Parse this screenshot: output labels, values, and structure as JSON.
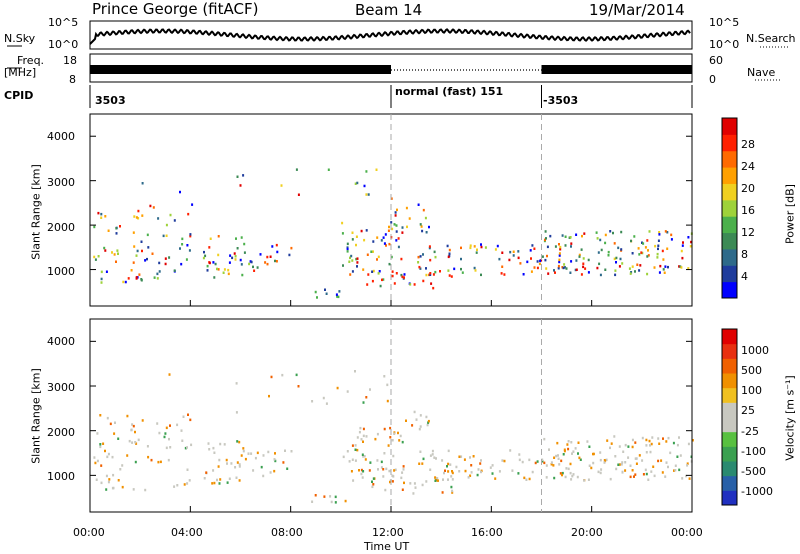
{
  "header": {
    "station": "Prince George (fitACF)",
    "beam": "Beam 14",
    "date": "19/Mar/2014"
  },
  "strip": {
    "nsky_label": "N.Sky",
    "nsearch_label": "N.Search",
    "noise_ticks_left": [
      "10^5",
      "10^0"
    ],
    "noise_ticks_right": [
      "10^5",
      "10^0"
    ],
    "freq_label": "Freq.",
    "freq_unit": "[MHz]",
    "freq_ticks": [
      "18",
      "8"
    ],
    "nave_label": "Nave",
    "nave_ticks": [
      "60",
      "0"
    ],
    "cpid_label": "CPID",
    "cpid_segments": [
      {
        "label": "3503",
        "start_h": 0,
        "end_h": 12
      },
      {
        "label": "normal (fast) 151",
        "start_h": 12,
        "end_h": 18
      },
      {
        "label": "-3503",
        "start_h": 18,
        "end_h": 24
      }
    ]
  },
  "chart_data": [
    {
      "type": "heatmap",
      "name": "power",
      "ylabel": "Slant Range [km]",
      "yticks": [
        "4000",
        "3000",
        "2000",
        "1000"
      ],
      "ylim": [
        180,
        4500
      ],
      "colorbar_label": "Power [dB]",
      "colorbar_ticks": [
        "28",
        "24",
        "20",
        "16",
        "12",
        "8",
        "4"
      ],
      "colorbar_colors": [
        "#0000ff",
        "#1f3c9c",
        "#2e6a8a",
        "#3c8a55",
        "#4bb04b",
        "#9ed23a",
        "#f0d020",
        "#ffa000",
        "#ff6a00",
        "#ff2000",
        "#e00000"
      ],
      "range_km": [
        180,
        4500
      ],
      "value_range": [
        0,
        30
      ]
    },
    {
      "type": "heatmap",
      "name": "velocity",
      "ylabel": "Slant Range [km]",
      "yticks": [
        "4000",
        "3000",
        "2000",
        "1000"
      ],
      "ylim": [
        180,
        4500
      ],
      "colorbar_label": "Velocity [m s⁻¹]",
      "colorbar_ticks": [
        "1000",
        "500",
        "100",
        "25",
        "-25",
        "-100",
        "-500",
        "-1000"
      ],
      "colorbar_colors": [
        "#2030c0",
        "#2860a8",
        "#2a8a70",
        "#3aa050",
        "#58c040",
        "#c8c8c0",
        "#c8c8c0",
        "#f0c020",
        "#f09000",
        "#f06000",
        "#e83010",
        "#e00000"
      ],
      "value_range": [
        -1000,
        1000
      ]
    }
  ],
  "xaxis": {
    "label": "Time UT",
    "ticks": [
      "00:00",
      "04:00",
      "08:00",
      "12:00",
      "16:00",
      "20:00",
      "00:00"
    ]
  }
}
